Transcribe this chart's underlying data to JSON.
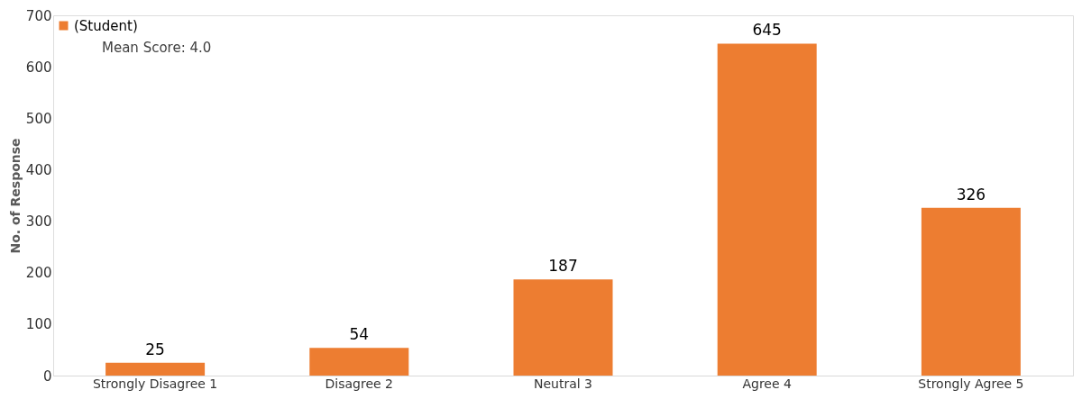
{
  "chart_data": {
    "type": "bar",
    "ylabel": "No. of Response",
    "categories": [
      "Strongly Disagree 1",
      "Disagree 2",
      "Neutral 3",
      "Agree 4",
      "Strongly Agree 5"
    ],
    "series": [
      {
        "name": "(Student)",
        "color": "#ed7d31",
        "values": [
          25,
          54,
          187,
          645,
          326
        ]
      }
    ],
    "ylim": [
      0,
      700
    ],
    "yticks": [
      0,
      100,
      200,
      300,
      400,
      500,
      600,
      700
    ],
    "data_labels": true,
    "grid": false,
    "legend": "top left",
    "annotations": [
      "Mean Score: 4.0"
    ]
  }
}
